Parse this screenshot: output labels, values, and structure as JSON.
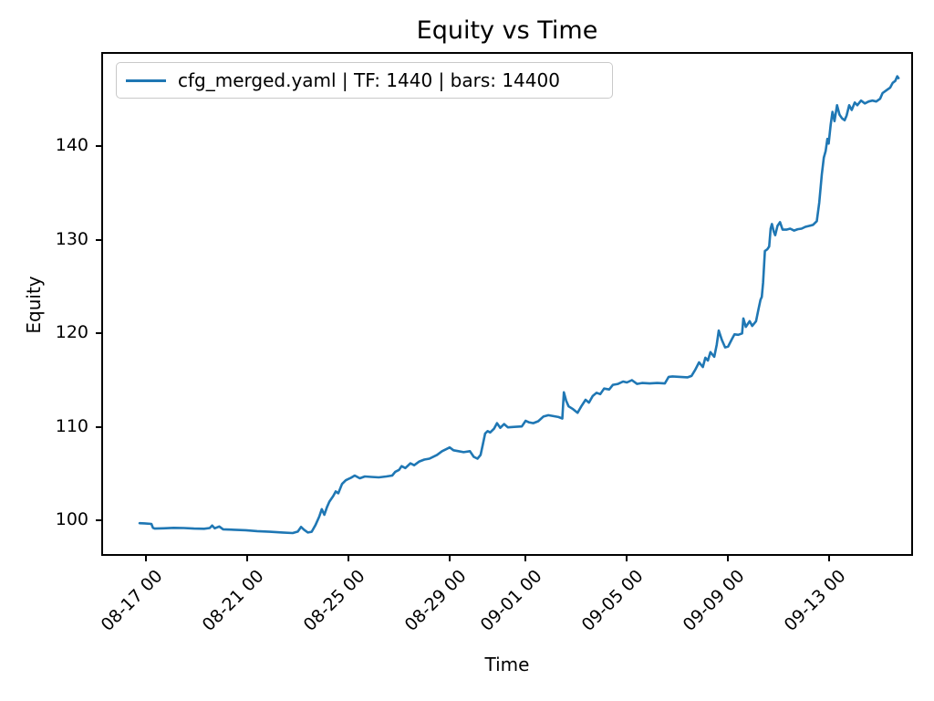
{
  "chart_data": {
    "type": "line",
    "title": "Equity vs Time",
    "xlabel": "Time",
    "ylabel": "Equity",
    "grid": false,
    "legend_position": "upper left",
    "line_color": "#1f77b4",
    "xlim": [
      -0.69,
      31.23
    ],
    "ylim": [
      96.4,
      149.9
    ],
    "x_day_reference": "day 1 = tick 08-17 00",
    "x_ticks": [
      {
        "day": 1,
        "label": "08-17 00"
      },
      {
        "day": 5,
        "label": "08-21 00"
      },
      {
        "day": 9,
        "label": "08-25 00"
      },
      {
        "day": 13,
        "label": "08-29 00"
      },
      {
        "day": 16,
        "label": "09-01 00"
      },
      {
        "day": 20,
        "label": "09-05 00"
      },
      {
        "day": 24,
        "label": "09-09 00"
      },
      {
        "day": 28,
        "label": "09-13 00"
      }
    ],
    "y_ticks": [
      100,
      110,
      120,
      130,
      140
    ],
    "series": [
      {
        "name": "cfg_merged.yaml | TF: 1440 | bars: 14400",
        "color": "#1f77b4",
        "points": [
          [
            0.75,
            99.7
          ],
          [
            0.95,
            99.68
          ],
          [
            1.22,
            99.62
          ],
          [
            1.28,
            99.2
          ],
          [
            1.35,
            99.12
          ],
          [
            1.7,
            99.15
          ],
          [
            2.1,
            99.2
          ],
          [
            2.5,
            99.18
          ],
          [
            2.9,
            99.12
          ],
          [
            3.3,
            99.1
          ],
          [
            3.52,
            99.18
          ],
          [
            3.62,
            99.45
          ],
          [
            3.72,
            99.15
          ],
          [
            3.9,
            99.35
          ],
          [
            4.05,
            99.05
          ],
          [
            4.5,
            99.0
          ],
          [
            4.95,
            98.95
          ],
          [
            5.4,
            98.85
          ],
          [
            5.9,
            98.78
          ],
          [
            6.4,
            98.7
          ],
          [
            6.8,
            98.65
          ],
          [
            7.0,
            98.8
          ],
          [
            7.13,
            99.3
          ],
          [
            7.25,
            99.0
          ],
          [
            7.4,
            98.7
          ],
          [
            7.55,
            98.78
          ],
          [
            7.7,
            99.5
          ],
          [
            7.85,
            100.4
          ],
          [
            7.95,
            101.2
          ],
          [
            8.05,
            100.6
          ],
          [
            8.15,
            101.4
          ],
          [
            8.25,
            102.0
          ],
          [
            8.4,
            102.6
          ],
          [
            8.5,
            103.1
          ],
          [
            8.6,
            102.9
          ],
          [
            8.75,
            103.9
          ],
          [
            8.9,
            104.3
          ],
          [
            9.1,
            104.55
          ],
          [
            9.25,
            104.8
          ],
          [
            9.45,
            104.5
          ],
          [
            9.65,
            104.7
          ],
          [
            9.9,
            104.65
          ],
          [
            10.2,
            104.6
          ],
          [
            10.5,
            104.7
          ],
          [
            10.73,
            104.8
          ],
          [
            10.85,
            105.2
          ],
          [
            11.0,
            105.4
          ],
          [
            11.1,
            105.8
          ],
          [
            11.25,
            105.6
          ],
          [
            11.45,
            106.1
          ],
          [
            11.6,
            105.9
          ],
          [
            11.8,
            106.3
          ],
          [
            12.0,
            106.5
          ],
          [
            12.2,
            106.6
          ],
          [
            12.5,
            107.0
          ],
          [
            12.7,
            107.4
          ],
          [
            12.85,
            107.6
          ],
          [
            13.0,
            107.8
          ],
          [
            13.15,
            107.5
          ],
          [
            13.35,
            107.4
          ],
          [
            13.55,
            107.3
          ],
          [
            13.8,
            107.4
          ],
          [
            13.95,
            106.8
          ],
          [
            14.1,
            106.6
          ],
          [
            14.22,
            107.0
          ],
          [
            14.3,
            108.0
          ],
          [
            14.4,
            109.3
          ],
          [
            14.5,
            109.55
          ],
          [
            14.6,
            109.4
          ],
          [
            14.75,
            109.8
          ],
          [
            14.87,
            110.4
          ],
          [
            15.0,
            109.9
          ],
          [
            15.15,
            110.3
          ],
          [
            15.3,
            109.95
          ],
          [
            15.55,
            110.0
          ],
          [
            15.85,
            110.05
          ],
          [
            16.0,
            110.65
          ],
          [
            16.12,
            110.5
          ],
          [
            16.3,
            110.4
          ],
          [
            16.5,
            110.6
          ],
          [
            16.7,
            111.1
          ],
          [
            16.9,
            111.25
          ],
          [
            17.1,
            111.15
          ],
          [
            17.3,
            111.05
          ],
          [
            17.45,
            110.9
          ],
          [
            17.51,
            113.7
          ],
          [
            17.6,
            112.8
          ],
          [
            17.7,
            112.2
          ],
          [
            17.87,
            111.9
          ],
          [
            18.05,
            111.5
          ],
          [
            18.2,
            112.2
          ],
          [
            18.37,
            112.9
          ],
          [
            18.5,
            112.6
          ],
          [
            18.65,
            113.3
          ],
          [
            18.8,
            113.65
          ],
          [
            18.95,
            113.5
          ],
          [
            19.1,
            114.1
          ],
          [
            19.3,
            114.0
          ],
          [
            19.45,
            114.5
          ],
          [
            19.65,
            114.6
          ],
          [
            19.85,
            114.85
          ],
          [
            20.0,
            114.75
          ],
          [
            20.2,
            115.0
          ],
          [
            20.4,
            114.6
          ],
          [
            20.6,
            114.7
          ],
          [
            20.9,
            114.65
          ],
          [
            21.2,
            114.7
          ],
          [
            21.5,
            114.65
          ],
          [
            21.65,
            115.35
          ],
          [
            21.8,
            115.4
          ],
          [
            22.1,
            115.35
          ],
          [
            22.4,
            115.3
          ],
          [
            22.55,
            115.45
          ],
          [
            22.7,
            116.1
          ],
          [
            22.85,
            116.9
          ],
          [
            23.0,
            116.4
          ],
          [
            23.1,
            117.4
          ],
          [
            23.2,
            117.1
          ],
          [
            23.3,
            118.0
          ],
          [
            23.45,
            117.5
          ],
          [
            23.55,
            118.8
          ],
          [
            23.63,
            120.3
          ],
          [
            23.75,
            119.3
          ],
          [
            23.88,
            118.5
          ],
          [
            24.0,
            118.6
          ],
          [
            24.15,
            119.4
          ],
          [
            24.25,
            119.9
          ],
          [
            24.4,
            119.85
          ],
          [
            24.55,
            120.0
          ],
          [
            24.6,
            121.6
          ],
          [
            24.7,
            120.7
          ],
          [
            24.85,
            121.3
          ],
          [
            24.95,
            120.8
          ],
          [
            25.1,
            121.3
          ],
          [
            25.2,
            122.6
          ],
          [
            25.28,
            123.6
          ],
          [
            25.33,
            123.9
          ],
          [
            25.38,
            125.4
          ],
          [
            25.45,
            128.8
          ],
          [
            25.55,
            129.0
          ],
          [
            25.62,
            129.3
          ],
          [
            25.68,
            131.2
          ],
          [
            25.73,
            131.7
          ],
          [
            25.8,
            130.9
          ],
          [
            25.86,
            130.5
          ],
          [
            25.95,
            131.5
          ],
          [
            26.05,
            131.9
          ],
          [
            26.15,
            131.1
          ],
          [
            26.3,
            131.1
          ],
          [
            26.45,
            131.2
          ],
          [
            26.6,
            131.0
          ],
          [
            26.75,
            131.15
          ],
          [
            26.9,
            131.2
          ],
          [
            27.05,
            131.4
          ],
          [
            27.2,
            131.5
          ],
          [
            27.35,
            131.6
          ],
          [
            27.5,
            132.0
          ],
          [
            27.6,
            134.0
          ],
          [
            27.7,
            137.0
          ],
          [
            27.78,
            138.8
          ],
          [
            27.85,
            139.5
          ],
          [
            27.92,
            140.8
          ],
          [
            27.97,
            140.3
          ],
          [
            28.05,
            142.3
          ],
          [
            28.12,
            143.7
          ],
          [
            28.2,
            142.7
          ],
          [
            28.3,
            144.4
          ],
          [
            28.4,
            143.4
          ],
          [
            28.5,
            143.0
          ],
          [
            28.6,
            142.8
          ],
          [
            28.68,
            143.3
          ],
          [
            28.78,
            144.4
          ],
          [
            28.88,
            143.9
          ],
          [
            29.0,
            144.7
          ],
          [
            29.1,
            144.4
          ],
          [
            29.25,
            144.9
          ],
          [
            29.4,
            144.6
          ],
          [
            29.55,
            144.8
          ],
          [
            29.7,
            144.9
          ],
          [
            29.85,
            144.8
          ],
          [
            30.0,
            145.1
          ],
          [
            30.1,
            145.7
          ],
          [
            30.25,
            146.0
          ],
          [
            30.4,
            146.3
          ],
          [
            30.5,
            146.8
          ],
          [
            30.6,
            147.0
          ],
          [
            30.68,
            147.5
          ],
          [
            30.73,
            147.3
          ]
        ]
      }
    ]
  },
  "colors": {
    "line": "#1f77b4",
    "spine": "#000000",
    "text": "#000000",
    "legend_border": "#c9c9c9",
    "background": "#ffffff"
  }
}
